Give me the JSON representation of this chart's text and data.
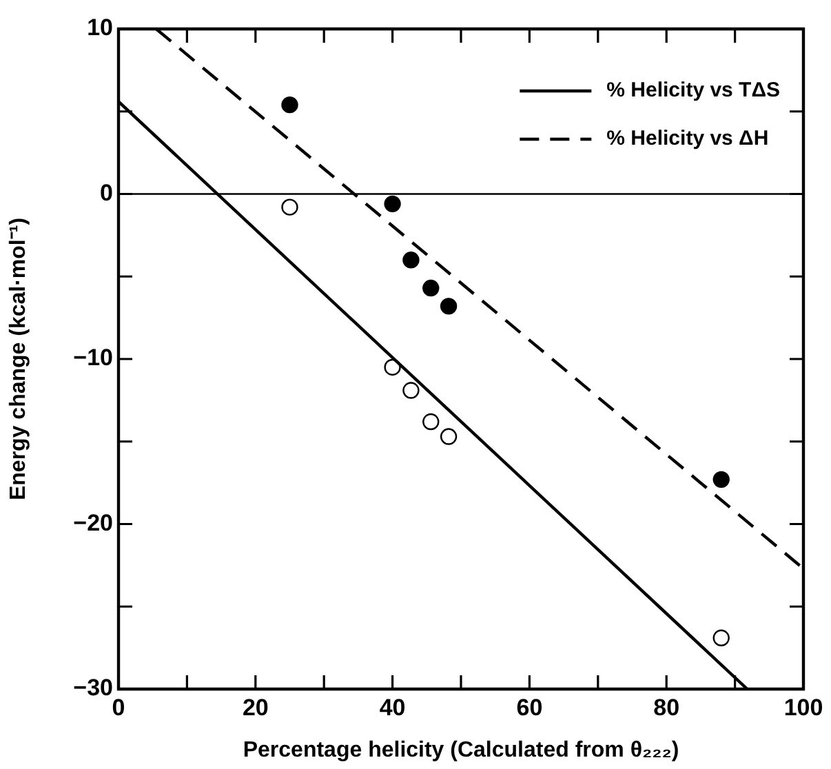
{
  "chart_data": {
    "type": "scatter",
    "xlabel": "Percentage helicity (Calculated from θ₂₂₂)",
    "ylabel": "Energy change (kcal·mol⁻¹)",
    "xlim": [
      0,
      100
    ],
    "ylim": [
      -30,
      10
    ],
    "xticks": [
      0,
      {
        "value": 10,
        "label": null
      },
      20,
      {
        "value": 30,
        "label": null
      },
      40,
      {
        "value": 50,
        "label": null
      },
      60,
      {
        "value": 70,
        "label": null
      },
      80,
      {
        "value": 90,
        "label": null
      },
      100
    ],
    "yticks": [
      {
        "value": -30,
        "label": "−30"
      },
      {
        "value": -25,
        "label": null
      },
      {
        "value": -20,
        "label": "−20"
      },
      {
        "value": -15,
        "label": null
      },
      {
        "value": -10,
        "label": "−10"
      },
      {
        "value": -5,
        "label": null
      },
      0,
      {
        "value": 5,
        "label": null
      },
      10
    ],
    "grid": false,
    "legend": "top right",
    "marker": "circle",
    "ref_lines": [
      {
        "axis": "y",
        "value": 0,
        "color": "#000000"
      }
    ],
    "series": [
      {
        "name": "% Helicity vs TΔS",
        "type": "line",
        "color": "#000000",
        "line_style": "solid",
        "marker": "none",
        "x": [
          0,
          91.8
        ],
        "values": [
          5.6,
          -30
        ]
      },
      {
        "name": "% Helicity vs ΔH",
        "type": "line",
        "color": "#000000",
        "line_style": "dashed",
        "marker": "none",
        "x": [
          5.5,
          100
        ],
        "values": [
          10,
          -22.7
        ]
      },
      {
        "type": "scatter",
        "color": "#000000",
        "x": [
          25,
          40,
          42.7,
          45.6,
          48.2,
          88
        ],
        "values": [
          5.4,
          -0.6,
          -4.0,
          -5.7,
          -6.8,
          -17.3
        ]
      },
      {
        "type": "scatter",
        "color": "#ffffff",
        "x": [
          25,
          40,
          42.7,
          45.6,
          48.2,
          88
        ],
        "values": [
          -0.8,
          -10.5,
          -11.9,
          -13.8,
          -14.7,
          -26.9
        ]
      }
    ]
  }
}
